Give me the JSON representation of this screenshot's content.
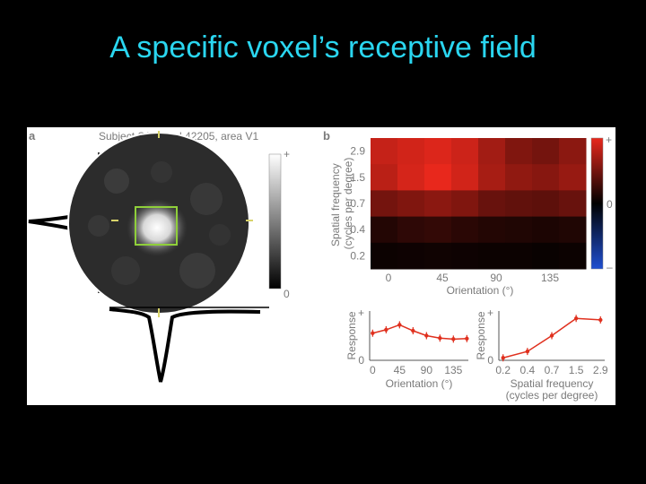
{
  "slide": {
    "title": "A specific voxel’s receptive field"
  },
  "panel_a": {
    "letter": "a",
    "title": "Subject S1, voxel 42205, area V1",
    "colorbar_top": "+",
    "colorbar_bottom": "0"
  },
  "panel_b": {
    "letter": "b",
    "colorbar_top": "+",
    "colorbar_mid": "0",
    "colorbar_bottom": "–"
  },
  "chart_data": [
    {
      "type": "heatmap",
      "ylabel": "Spatial frequency\n(cycles per degree)",
      "xlabel": "Orientation (°)",
      "x_ticks": [
        "0",
        "45",
        "90",
        "135"
      ],
      "y_ticks": [
        "2.9",
        "1.5",
        "0.7",
        "0.4",
        "0.2"
      ],
      "orientations": [
        0,
        22.5,
        45,
        67.5,
        90,
        112.5,
        135,
        157.5
      ],
      "spatial_frequencies": [
        2.9,
        1.5,
        0.7,
        0.4,
        0.2
      ],
      "values": [
        [
          0.85,
          0.9,
          0.95,
          0.88,
          0.7,
          0.55,
          0.5,
          0.6
        ],
        [
          0.8,
          0.92,
          1.0,
          0.9,
          0.72,
          0.62,
          0.58,
          0.65
        ],
        [
          0.5,
          0.55,
          0.6,
          0.55,
          0.45,
          0.42,
          0.4,
          0.45
        ],
        [
          0.15,
          0.2,
          0.22,
          0.18,
          0.15,
          0.14,
          0.12,
          0.14
        ],
        [
          0.05,
          0.06,
          0.07,
          0.06,
          0.05,
          0.05,
          0.04,
          0.05
        ]
      ],
      "colormap": {
        "positive": "#e8281c",
        "zero": "#000000",
        "negative": "#1f4fd1"
      }
    },
    {
      "type": "line",
      "xlabel": "Orientation (°)",
      "ylabel": "Response",
      "x_ticks": [
        "0",
        "45",
        "90",
        "135"
      ],
      "y_ticks": [
        "0",
        "+"
      ],
      "x": [
        0,
        22.5,
        45,
        67.5,
        90,
        112.5,
        135,
        157.5
      ],
      "y": [
        0.55,
        0.62,
        0.72,
        0.6,
        0.5,
        0.45,
        0.43,
        0.44
      ],
      "ylim": [
        0,
        1
      ],
      "color": "#e0301e"
    },
    {
      "type": "line",
      "xlabel": "Spatial frequency\n(cycles per degree)",
      "ylabel": "Response",
      "x_ticks": [
        "0.2",
        "0.4",
        "0.7",
        "1.5",
        "2.9"
      ],
      "y_ticks": [
        "0",
        "+"
      ],
      "x": [
        0.2,
        0.4,
        0.7,
        1.5,
        2.9
      ],
      "y": [
        0.05,
        0.18,
        0.5,
        0.85,
        0.82
      ],
      "ylim": [
        0,
        1
      ],
      "color": "#e0301e"
    }
  ]
}
